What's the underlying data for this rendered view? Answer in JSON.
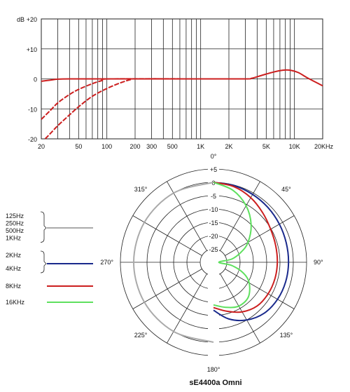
{
  "chart_data": [
    {
      "type": "line",
      "x_scale": "log",
      "y_axis_unit_label": "dB",
      "x_ticks": [
        20,
        50,
        100,
        200,
        300,
        500,
        1000,
        2000,
        5000,
        10000,
        20000
      ],
      "x_tick_labels": [
        "20",
        "50",
        "100",
        "200",
        "300",
        "500",
        "1K",
        "2K",
        "5K",
        "10K",
        "20KHz"
      ],
      "y_ticks": [
        20,
        10,
        0,
        -10,
        -20
      ],
      "y_tick_labels": [
        "+20",
        "+10",
        "0",
        "-10",
        "-20"
      ],
      "xlim": [
        20,
        20000
      ],
      "ylim": [
        -20,
        20
      ],
      "grid": true,
      "series": [
        {
          "style": "solid",
          "color": "#cc1f1f",
          "points": [
            [
              20,
              -0.8
            ],
            [
              25,
              -0.4
            ],
            [
              30,
              -0.1
            ],
            [
              40,
              0
            ],
            [
              100,
              0
            ],
            [
              1000,
              0
            ],
            [
              3000,
              0
            ],
            [
              3500,
              0.2
            ],
            [
              4500,
              1.2
            ],
            [
              6000,
              2.3
            ],
            [
              7500,
              2.9
            ],
            [
              9000,
              2.9
            ],
            [
              11000,
              2.1
            ],
            [
              14000,
              0.2
            ],
            [
              20000,
              -2.3
            ]
          ]
        },
        {
          "style": "dashed",
          "color": "#cc1f1f",
          "points": [
            [
              20,
              -13.5
            ],
            [
              25,
              -10.5
            ],
            [
              30,
              -8
            ],
            [
              40,
              -5.2
            ],
            [
              50,
              -3.5
            ],
            [
              70,
              -1.6
            ],
            [
              90,
              -0.5
            ],
            [
              110,
              0
            ],
            [
              1000,
              0
            ]
          ]
        },
        {
          "style": "dashed",
          "color": "#cc1f1f",
          "points": [
            [
              22,
              -20
            ],
            [
              25,
              -18.2
            ],
            [
              30,
              -15.6
            ],
            [
              40,
              -12
            ],
            [
              50,
              -9.3
            ],
            [
              70,
              -5.8
            ],
            [
              100,
              -3.2
            ],
            [
              140,
              -1.3
            ],
            [
              180,
              -0.2
            ],
            [
              200,
              0
            ],
            [
              1000,
              0
            ]
          ]
        }
      ]
    },
    {
      "type": "polar",
      "title": "sE4400a Omni",
      "angle_labels": [
        "0°",
        "45°",
        "90°",
        "135°",
        "180°",
        "225°",
        "270°",
        "315°"
      ],
      "radial_tick_labels": [
        "+5",
        "0",
        "-5",
        "-10",
        "-15",
        "-20",
        "-25"
      ],
      "radial_range_db": [
        -30,
        5
      ],
      "legend": [
        {
          "lines": [
            "125Hz",
            "250Hz",
            "500Hz",
            "1KHz"
          ],
          "color": "#aaaaaa",
          "grouped": true
        },
        {
          "lines": [
            "2KHz",
            "4KHz"
          ],
          "color": "#1a2a8c",
          "grouped": true
        },
        {
          "lines": [
            "8KHz"
          ],
          "color": "#cc1f1f",
          "grouped": false
        },
        {
          "lines": [
            "16KHz"
          ],
          "color": "#5ee05e",
          "grouped": false
        }
      ],
      "series": [
        {
          "name": "125Hz/250Hz/500Hz/1KHz",
          "color": "#aaaaaa",
          "angles": [
            0,
            30,
            60,
            90,
            120,
            150,
            180
          ],
          "db": [
            0,
            0,
            0,
            0,
            0,
            0,
            0
          ],
          "side": "left"
        },
        {
          "name": "2KHz/4KHz",
          "color": "#1a2a8c",
          "angles": [
            0,
            15,
            30,
            45,
            60,
            75,
            90,
            105,
            120,
            135,
            150,
            165,
            180
          ],
          "db": [
            0,
            -0.2,
            -0.6,
            -1,
            -1.4,
            -1.7,
            -1.8,
            -1.9,
            -2.2,
            -3,
            -5,
            -8,
            -12
          ],
          "side": "right"
        },
        {
          "name": "8KHz",
          "color": "#cc1f1f",
          "angles": [
            0,
            15,
            30,
            45,
            60,
            75,
            90,
            105,
            120,
            135,
            150,
            165,
            180
          ],
          "db": [
            0,
            -0.6,
            -2,
            -3.8,
            -5.2,
            -5.8,
            -6,
            -6.1,
            -6.3,
            -6.8,
            -8.5,
            -11,
            -13
          ],
          "side": "right"
        },
        {
          "name": "16KHz",
          "color": "#5ee05e",
          "angles": [
            0,
            15,
            30,
            45,
            60,
            70,
            80,
            90,
            100,
            110,
            120,
            135,
            150,
            165,
            180
          ],
          "db": [
            0,
            -2,
            -5.5,
            -10,
            -15,
            -19,
            -23,
            -28,
            -23,
            -18,
            -14.5,
            -11.5,
            -11,
            -12.5,
            -14
          ],
          "side": "right"
        }
      ]
    }
  ]
}
